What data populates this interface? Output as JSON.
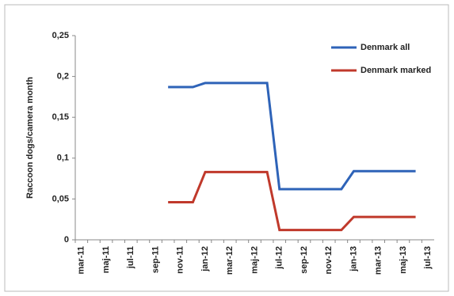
{
  "chart_data": {
    "type": "line",
    "y_label": "Raccoon dogs/camera month",
    "categories": [
      "mar-11",
      null,
      "maj-11",
      null,
      "jul-11",
      null,
      "sep-11",
      null,
      "nov-11",
      null,
      "jan-12",
      null,
      "mar-12",
      null,
      "maj-12",
      null,
      "jul-12",
      null,
      "sep-12",
      null,
      "nov-12",
      null,
      "jan-13",
      null,
      "mar-13",
      null,
      "maj-13",
      null,
      "jul-13"
    ],
    "series": [
      {
        "name": "Denmark all",
        "color": "#2e63b8",
        "values": [
          null,
          null,
          null,
          null,
          null,
          null,
          null,
          0.187,
          0.187,
          0.187,
          0.192,
          0.192,
          0.192,
          0.192,
          0.192,
          0.192,
          0.062,
          0.062,
          0.062,
          0.062,
          0.062,
          0.062,
          0.084,
          0.084,
          0.084,
          0.084,
          0.084,
          0.084,
          null
        ]
      },
      {
        "name": "Denmark marked",
        "color": "#c0392b",
        "values": [
          null,
          null,
          null,
          null,
          null,
          null,
          null,
          0.046,
          0.046,
          0.046,
          0.083,
          0.083,
          0.083,
          0.083,
          0.083,
          0.083,
          0.012,
          0.012,
          0.012,
          0.012,
          0.012,
          0.012,
          0.028,
          0.028,
          0.028,
          0.028,
          0.028,
          0.028,
          null
        ]
      }
    ],
    "ylim": [
      0,
      0.25
    ],
    "yticks": [
      0,
      {
        "value": 0.05,
        "label": "0,05"
      },
      {
        "value": 0.1,
        "label": "0,1"
      },
      {
        "value": 0.15,
        "label": "0,15"
      },
      {
        "value": 0.2,
        "label": "0,2"
      },
      {
        "value": 0.25,
        "label": "0,25"
      }
    ],
    "legend": "top-right"
  }
}
